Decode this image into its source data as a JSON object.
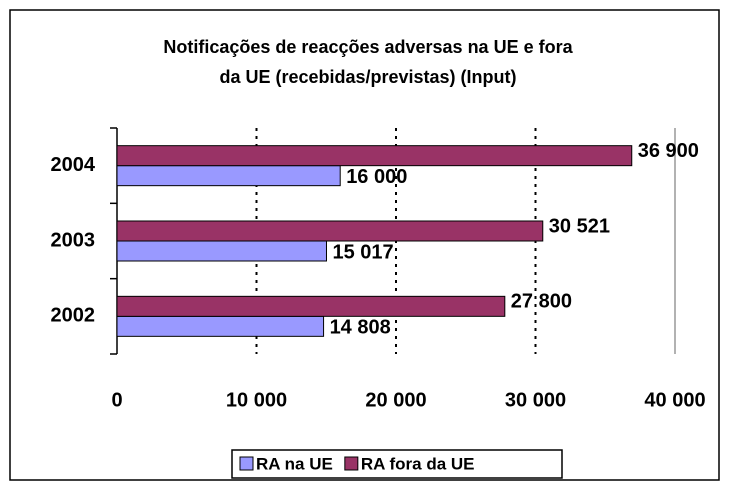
{
  "chart_data": {
    "type": "bar",
    "orientation": "horizontal",
    "title": [
      "Notificações de reacções adversas na UE e fora",
      "da UE (recebidas/previstas) (Input)"
    ],
    "categories": [
      "2002",
      "2003",
      "2004"
    ],
    "series": [
      {
        "name": "RA na UE",
        "color": "#9999ff",
        "values": [
          14808,
          15017,
          16000
        ],
        "value_labels": [
          "14 808",
          "15 017",
          "16 000"
        ]
      },
      {
        "name": "RA fora da UE",
        "color": "#993366",
        "values": [
          27800,
          30521,
          36900
        ],
        "value_labels": [
          "27 800",
          "30 521",
          "36 900"
        ]
      }
    ],
    "xlim": [
      0,
      40000
    ],
    "xticks": [
      0,
      {
        "value": 10000,
        "label": "10 000"
      },
      {
        "value": 20000,
        "label": "20 000"
      },
      {
        "value": 30000,
        "label": "30 000"
      },
      {
        "value": 40000,
        "label": "40 000"
      }
    ],
    "grid": true,
    "legend": "bottom"
  }
}
